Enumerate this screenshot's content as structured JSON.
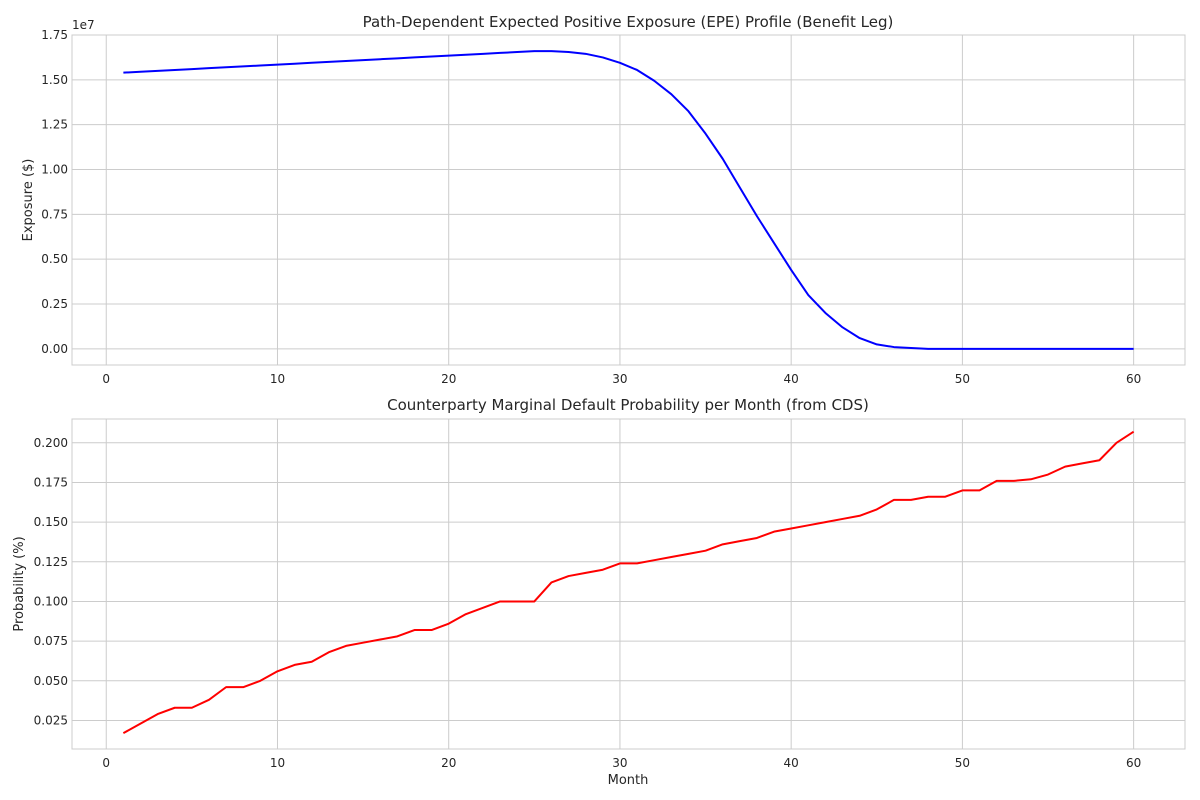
{
  "chart_data": [
    {
      "type": "line",
      "title": "Path-Dependent Expected Positive Exposure (EPE) Profile (Benefit Leg)",
      "xlabel": "",
      "ylabel": "Exposure ($)",
      "offset_label": "1e7",
      "xlim": [
        -2,
        63
      ],
      "ylim": [
        -0.09,
        1.75
      ],
      "x_ticks": [
        0,
        10,
        20,
        30,
        40,
        50,
        60
      ],
      "x_tick_labels": [
        "0",
        "10",
        "20",
        "30",
        "40",
        "50",
        "60"
      ],
      "y_ticks": [
        0,
        0.25,
        0.5,
        0.75,
        1.0,
        1.25,
        1.5,
        1.75
      ],
      "y_tick_labels": [
        "0.00",
        "0.25",
        "0.50",
        "0.75",
        "1.00",
        "1.25",
        "1.50",
        "1.75"
      ],
      "grid": true,
      "series": [
        {
          "color": "#0000ff",
          "x": [
            1,
            2,
            3,
            4,
            5,
            6,
            7,
            8,
            9,
            10,
            11,
            12,
            13,
            14,
            15,
            16,
            17,
            18,
            19,
            20,
            21,
            22,
            23,
            24,
            25,
            26,
            27,
            28,
            29,
            30,
            31,
            32,
            33,
            34,
            35,
            36,
            37,
            38,
            39,
            40,
            41,
            42,
            43,
            44,
            45,
            46,
            47,
            48,
            49,
            50,
            51,
            52,
            53,
            54,
            55,
            56,
            57,
            58,
            59,
            60
          ],
          "values": [
            1.54,
            1.545,
            1.55,
            1.555,
            1.56,
            1.565,
            1.57,
            1.575,
            1.58,
            1.585,
            1.59,
            1.595,
            1.6,
            1.605,
            1.61,
            1.615,
            1.62,
            1.625,
            1.63,
            1.635,
            1.64,
            1.645,
            1.65,
            1.655,
            1.66,
            1.66,
            1.655,
            1.645,
            1.625,
            1.595,
            1.555,
            1.495,
            1.42,
            1.325,
            1.2,
            1.06,
            0.9,
            0.74,
            0.59,
            0.44,
            0.3,
            0.2,
            0.12,
            0.06,
            0.025,
            0.01,
            0.005,
            0.0,
            0.0,
            0.0,
            0.0,
            0.0,
            0.0,
            0.0,
            0.0,
            0.0,
            0.0,
            0.0,
            0.0,
            0.0
          ]
        }
      ]
    },
    {
      "type": "line",
      "title": "Counterparty Marginal Default Probability per Month (from CDS)",
      "xlabel": "Month",
      "ylabel": "Probability (%)",
      "xlim": [
        -2,
        63
      ],
      "ylim": [
        0.007,
        0.215
      ],
      "x_ticks": [
        0,
        10,
        20,
        30,
        40,
        50,
        60
      ],
      "x_tick_labels": [
        "0",
        "10",
        "20",
        "30",
        "40",
        "50",
        "60"
      ],
      "y_ticks": [
        0.025,
        0.05,
        0.075,
        0.1,
        0.125,
        0.15,
        0.175,
        0.2
      ],
      "y_tick_labels": [
        "0.025",
        "0.050",
        "0.075",
        "0.100",
        "0.125",
        "0.150",
        "0.175",
        "0.200"
      ],
      "grid": true,
      "series": [
        {
          "color": "#ff0000",
          "x": [
            1,
            2,
            3,
            4,
            5,
            6,
            7,
            8,
            9,
            10,
            11,
            12,
            13,
            14,
            15,
            16,
            17,
            18,
            19,
            20,
            21,
            22,
            23,
            24,
            25,
            26,
            27,
            28,
            29,
            30,
            31,
            32,
            33,
            34,
            35,
            36,
            37,
            38,
            39,
            40,
            41,
            42,
            43,
            44,
            45,
            46,
            47,
            48,
            49,
            50,
            51,
            52,
            53,
            54,
            55,
            56,
            57,
            58,
            59,
            60
          ],
          "values": [
            0.017,
            0.023,
            0.029,
            0.033,
            0.033,
            0.038,
            0.046,
            0.046,
            0.05,
            0.056,
            0.06,
            0.062,
            0.068,
            0.072,
            0.074,
            0.076,
            0.078,
            0.082,
            0.082,
            0.086,
            0.092,
            0.096,
            0.1,
            0.1,
            0.1,
            0.112,
            0.116,
            0.118,
            0.12,
            0.124,
            0.124,
            0.126,
            0.128,
            0.13,
            0.132,
            0.136,
            0.138,
            0.14,
            0.144,
            0.146,
            0.148,
            0.15,
            0.152,
            0.154,
            0.158,
            0.164,
            0.164,
            0.166,
            0.166,
            0.17,
            0.17,
            0.176,
            0.176,
            0.177,
            0.18,
            0.185,
            0.187,
            0.189,
            0.2,
            0.207
          ]
        }
      ]
    }
  ]
}
